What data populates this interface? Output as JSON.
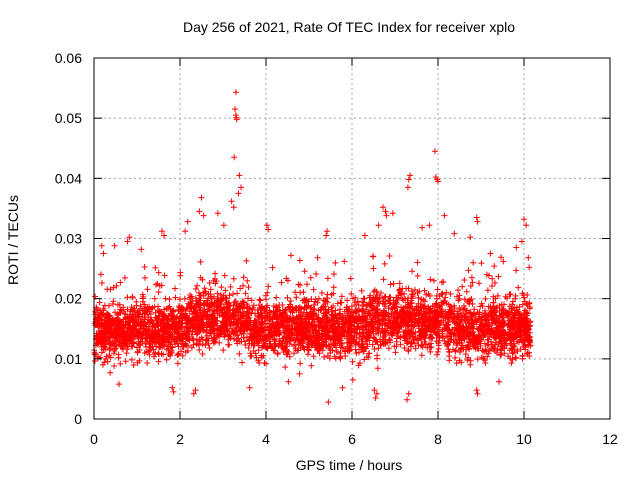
{
  "chart_data": {
    "type": "scatter",
    "title": "Day 256 of 2021, Rate Of TEC Index for receiver xplo",
    "xlabel": "GPS time / hours",
    "ylabel": "ROTI / TECUs",
    "xlim": [
      0,
      12
    ],
    "ylim": [
      0,
      0.06
    ],
    "x_ticks": [
      0,
      2,
      4,
      6,
      8,
      10,
      12
    ],
    "x_tick_labels": [
      "0",
      "2",
      "4",
      "6",
      "8",
      "10",
      "12"
    ],
    "y_ticks": [
      0,
      0.01,
      0.02,
      0.03,
      0.04,
      0.05,
      0.06
    ],
    "y_tick_labels": [
      "0",
      "0.01",
      "0.02",
      "0.03",
      "0.04",
      "0.05",
      "0.06"
    ],
    "grid": true,
    "marker": "+",
    "series": [
      {
        "name": "ROTI",
        "color": "#ff0000",
        "note": "Dense band of ROTI samples from ~0 to ~10.15 h, mostly 0.005–0.025 TECU/min, with excursions up to ~0.054",
        "points": [
          [
            3.3,
            0.0543
          ],
          [
            3.28,
            0.0515
          ],
          [
            3.3,
            0.0505
          ],
          [
            3.32,
            0.0498
          ],
          [
            3.31,
            0.0501
          ],
          [
            3.26,
            0.0435
          ],
          [
            7.93,
            0.0445
          ],
          [
            7.98,
            0.0398
          ],
          [
            7.95,
            0.0402
          ],
          [
            8.0,
            0.0395
          ],
          [
            7.35,
            0.0405
          ],
          [
            7.32,
            0.0398
          ],
          [
            7.3,
            0.0385
          ],
          [
            3.38,
            0.0405
          ],
          [
            3.42,
            0.0385
          ],
          [
            3.36,
            0.0375
          ],
          [
            3.2,
            0.0362
          ],
          [
            3.25,
            0.0352
          ],
          [
            2.5,
            0.0368
          ],
          [
            2.45,
            0.0345
          ],
          [
            2.55,
            0.0338
          ],
          [
            2.88,
            0.0342
          ],
          [
            3.02,
            0.0322
          ],
          [
            6.72,
            0.0352
          ],
          [
            6.78,
            0.0345
          ],
          [
            6.8,
            0.0338
          ],
          [
            6.95,
            0.0342
          ],
          [
            6.62,
            0.0322
          ],
          [
            8.9,
            0.0335
          ],
          [
            8.92,
            0.0328
          ],
          [
            10.0,
            0.0332
          ],
          [
            10.05,
            0.0322
          ],
          [
            8.15,
            0.0338
          ],
          [
            7.63,
            0.0318
          ],
          [
            7.8,
            0.0322
          ],
          [
            8.38,
            0.0308
          ],
          [
            8.75,
            0.0302
          ],
          [
            4.02,
            0.0322
          ],
          [
            4.05,
            0.0315
          ],
          [
            5.42,
            0.0312
          ],
          [
            5.4,
            0.0305
          ],
          [
            6.3,
            0.0305
          ],
          [
            2.18,
            0.0328
          ],
          [
            2.12,
            0.0312
          ],
          [
            1.58,
            0.0312
          ],
          [
            1.63,
            0.0305
          ],
          [
            0.48,
            0.0288
          ],
          [
            0.82,
            0.0302
          ],
          [
            0.78,
            0.0295
          ],
          [
            0.18,
            0.0288
          ],
          [
            0.22,
            0.0275
          ],
          [
            1.1,
            0.0282
          ],
          [
            4.58,
            0.0272
          ],
          [
            5.2,
            0.0268
          ],
          [
            5.82,
            0.0262
          ],
          [
            9.22,
            0.0275
          ],
          [
            9.52,
            0.0262
          ],
          [
            9.82,
            0.0285
          ],
          [
            9.95,
            0.0295
          ],
          [
            10.1,
            0.0268
          ],
          [
            10.12,
            0.0252
          ],
          [
            1.82,
            0.0052
          ],
          [
            1.85,
            0.0045
          ],
          [
            2.32,
            0.0042
          ],
          [
            2.36,
            0.0048
          ],
          [
            6.55,
            0.0035
          ],
          [
            6.58,
            0.0042
          ],
          [
            6.52,
            0.0048
          ],
          [
            7.28,
            0.0032
          ],
          [
            7.32,
            0.0042
          ],
          [
            5.45,
            0.0028
          ],
          [
            8.92,
            0.0042
          ],
          [
            8.9,
            0.0048
          ],
          [
            0.58,
            0.0058
          ],
          [
            3.62,
            0.0052
          ],
          [
            5.78,
            0.0052
          ],
          [
            4.52,
            0.0062
          ],
          [
            9.42,
            0.0062
          ],
          [
            6.02,
            0.0065
          ],
          [
            4.78,
            0.0075
          ]
        ]
      }
    ]
  }
}
